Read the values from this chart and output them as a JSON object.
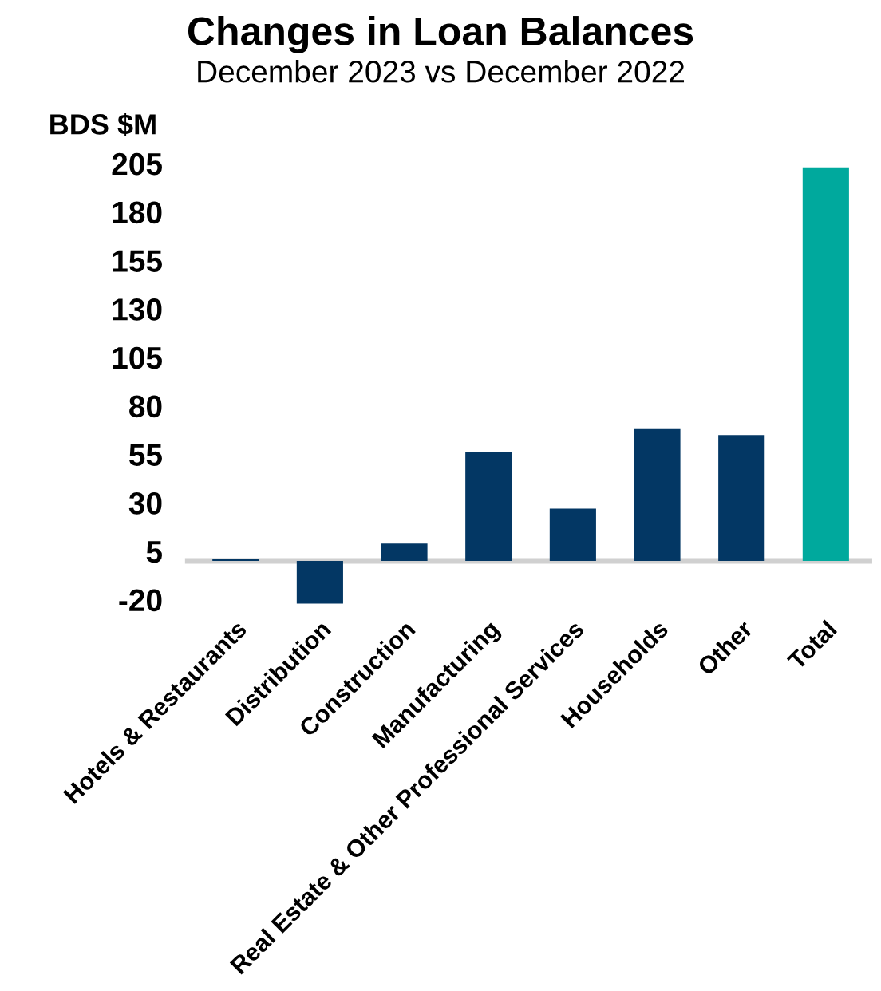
{
  "chart_data": {
    "type": "bar",
    "title": "Changes in Loan Balances",
    "subtitle": "December 2023 vs December 2022",
    "ylabel": "BDS $M",
    "categories": [
      "Hotels & Restaurants",
      "Distribution",
      "Construction",
      "Manufacturing",
      "Real Estate & Other Professional Services",
      "Households",
      "Other",
      "Total"
    ],
    "values": [
      1,
      -22,
      9,
      56,
      27,
      68,
      65,
      203
    ],
    "colors": [
      "#033764",
      "#033764",
      "#033764",
      "#033764",
      "#033764",
      "#033764",
      "#033764",
      "#00a99d"
    ],
    "ylim": [
      -25,
      205
    ],
    "yticks": [
      -20,
      5,
      30,
      55,
      80,
      105,
      130,
      155,
      180,
      205
    ],
    "grid": false,
    "legend": false
  }
}
